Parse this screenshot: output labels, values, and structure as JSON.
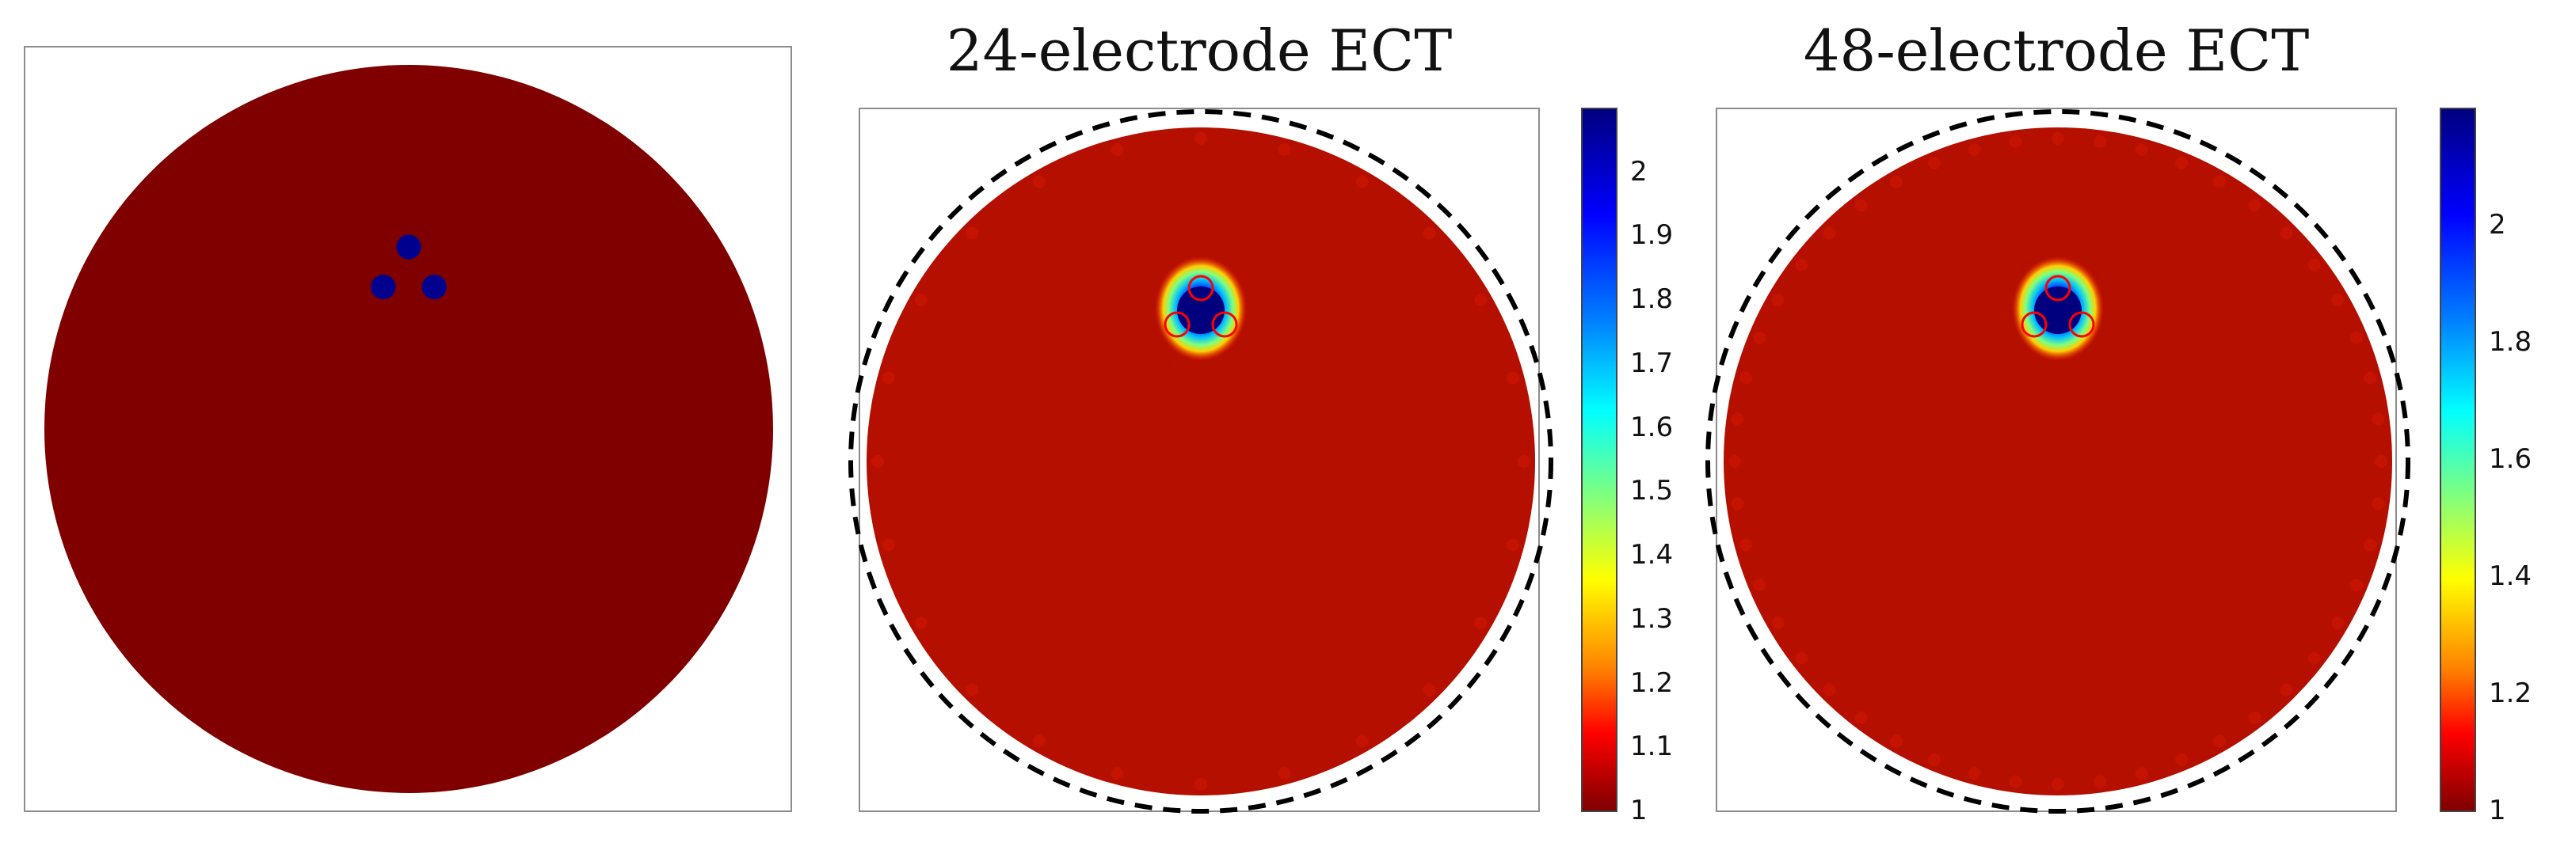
{
  "chart_data": [
    {
      "type": "heatmap",
      "title": "",
      "field": {
        "background": "#800000",
        "inclusions": [
          {
            "cx": 0.0,
            "cy": 0.5,
            "r": 0.034,
            "value": "high"
          },
          {
            "cx": -0.07,
            "cy": 0.39,
            "r": 0.034,
            "value": "high"
          },
          {
            "cx": 0.07,
            "cy": 0.39,
            "r": 0.034,
            "value": "high"
          }
        ],
        "inclusion_color": "#00008f"
      },
      "colorbar": null
    },
    {
      "type": "heatmap",
      "title": "24-electrode ECT",
      "field": {
        "background": "#b50f00",
        "anomaly_center": [
          0,
          0.5
        ],
        "electrode_count": 24
      },
      "colorbar": {
        "colormap": "jet",
        "min": 1,
        "max": 2.1,
        "ticks": [
          "1",
          "1.1",
          "1.2",
          "1.3",
          "1.4",
          "1.5",
          "1.6",
          "1.7",
          "1.8",
          "1.9",
          "2"
        ]
      }
    },
    {
      "type": "heatmap",
      "title": "48-electrode ECT",
      "field": {
        "background": "#b50f00",
        "anomaly_center": [
          0,
          0.5
        ],
        "electrode_count": 48
      },
      "colorbar": {
        "colormap": "jet",
        "min": 1,
        "max": 2.2,
        "ticks": [
          "1",
          "1.2",
          "1.4",
          "1.6",
          "1.8",
          "2"
        ]
      }
    }
  ],
  "colors": {
    "jet": [
      "#7f0000",
      "#ff0000",
      "#ff7f00",
      "#ffff00",
      "#7fff7f",
      "#00ffff",
      "#007fff",
      "#0000ff",
      "#00007f"
    ],
    "frame": "#8c8c8c",
    "boundary_dash": "#000000"
  }
}
